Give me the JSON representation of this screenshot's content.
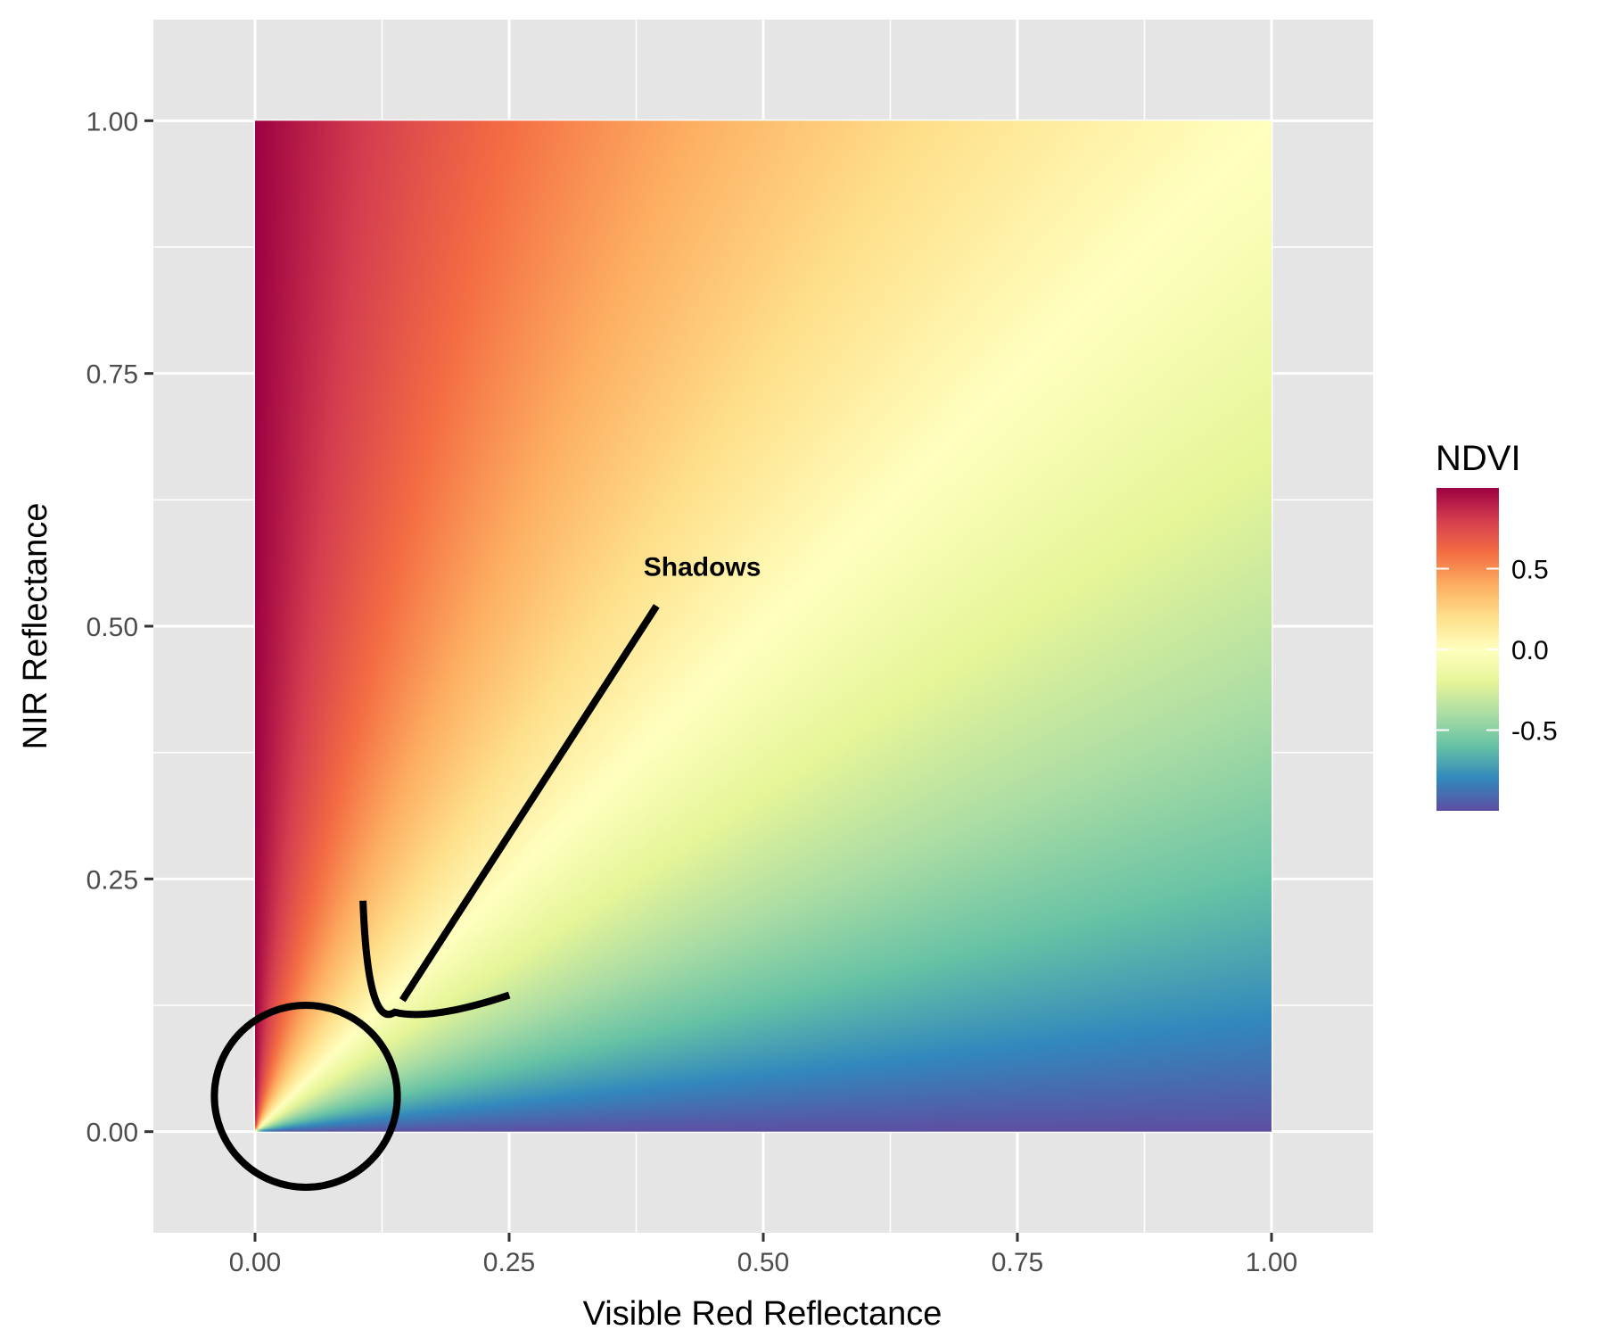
{
  "chart_data": {
    "type": "heatmap",
    "title": "",
    "xlabel": "Visible Red Reflectance",
    "ylabel": "NIR Reflectance",
    "xlim": [
      -0.1,
      1.1
    ],
    "ylim": [
      -0.1,
      1.1
    ],
    "x_ticks": [
      {
        "value": 0.0,
        "label": "0.00"
      },
      {
        "value": 0.25,
        "label": "0.25"
      },
      {
        "value": 0.5,
        "label": "0.50"
      },
      {
        "value": 0.75,
        "label": "0.75"
      },
      {
        "value": 1.0,
        "label": "1.00"
      }
    ],
    "y_ticks": [
      {
        "value": 0.0,
        "label": "0.00"
      },
      {
        "value": 0.25,
        "label": "0.25"
      },
      {
        "value": 0.5,
        "label": "0.50"
      },
      {
        "value": 0.75,
        "label": "0.75"
      },
      {
        "value": 1.0,
        "label": "1.00"
      }
    ],
    "x_minor_grid": [
      0.125,
      0.375,
      0.625,
      0.875
    ],
    "y_minor_grid": [
      0.125,
      0.375,
      0.625,
      0.875
    ],
    "grid": true,
    "panel_background": "#e5e5e5",
    "grid_color": "#ffffff",
    "fill_domain": {
      "x": [
        0,
        1
      ],
      "y": [
        0,
        1
      ]
    },
    "fill_formula": "(NIR - Red) / (NIR + Red)",
    "legend": {
      "title": "NDVI",
      "placement": "right",
      "range": [
        -1,
        1
      ],
      "ticks": [
        {
          "value": 0.5,
          "label": "0.5"
        },
        {
          "value": 0.0,
          "label": "0.0"
        },
        {
          "value": -0.5,
          "label": "-0.5"
        }
      ]
    },
    "palette": {
      "name": "Spectral",
      "stops": [
        {
          "value": 1.0,
          "color": "#9e0142"
        },
        {
          "value": 0.8,
          "color": "#d53e4f"
        },
        {
          "value": 0.6,
          "color": "#f46d43"
        },
        {
          "value": 0.4,
          "color": "#fdae61"
        },
        {
          "value": 0.2,
          "color": "#fee08b"
        },
        {
          "value": 0.0,
          "color": "#ffffbf"
        },
        {
          "value": -0.2,
          "color": "#e6f598"
        },
        {
          "value": -0.4,
          "color": "#abdda4"
        },
        {
          "value": -0.6,
          "color": "#66c2a5"
        },
        {
          "value": -0.8,
          "color": "#3288bd"
        },
        {
          "value": -1.0,
          "color": "#5e4fa2"
        }
      ]
    },
    "annotations": [
      {
        "type": "text",
        "text": "Shadows",
        "x": 0.44,
        "y": 0.55
      },
      {
        "type": "arrow",
        "from": [
          0.395,
          0.52
        ],
        "to": [
          0.145,
          0.13
        ]
      },
      {
        "type": "ellipse",
        "center": [
          0.05,
          0.035
        ],
        "rx": 0.09,
        "ry": 0.09
      }
    ]
  }
}
